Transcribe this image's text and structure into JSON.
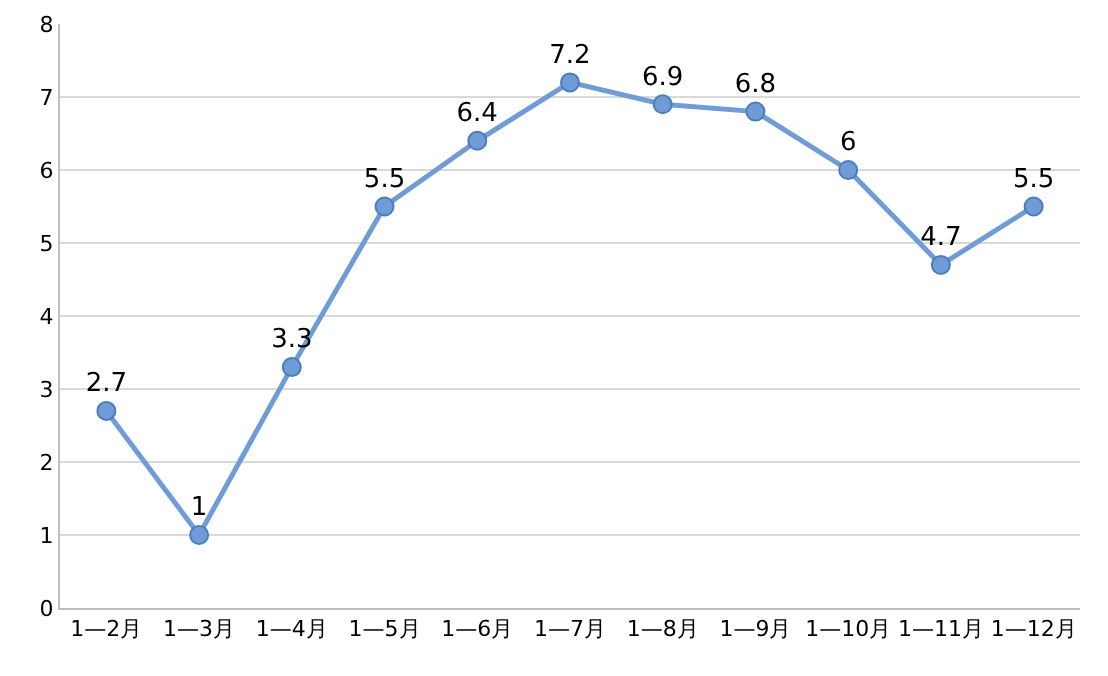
{
  "chart_data": {
    "type": "line",
    "categories": [
      "1—2月",
      "1—3月",
      "1—4月",
      "1—5月",
      "1—6月",
      "1—7月",
      "1—8月",
      "1—9月",
      "1—10月",
      "1—11月",
      "1—12月"
    ],
    "series": [
      {
        "color": "#6f9bd6",
        "values": [
          2.7,
          1,
          3.3,
          5.5,
          6.4,
          7.2,
          6.9,
          6.8,
          6,
          4.7,
          5.5
        ]
      }
    ],
    "ylim": [
      0,
      8
    ],
    "yticks": [
      0,
      1,
      2,
      3,
      4,
      5,
      6,
      7,
      8
    ],
    "grid": "y",
    "marker": "circle",
    "line_style": "solid",
    "data_labels": true
  }
}
